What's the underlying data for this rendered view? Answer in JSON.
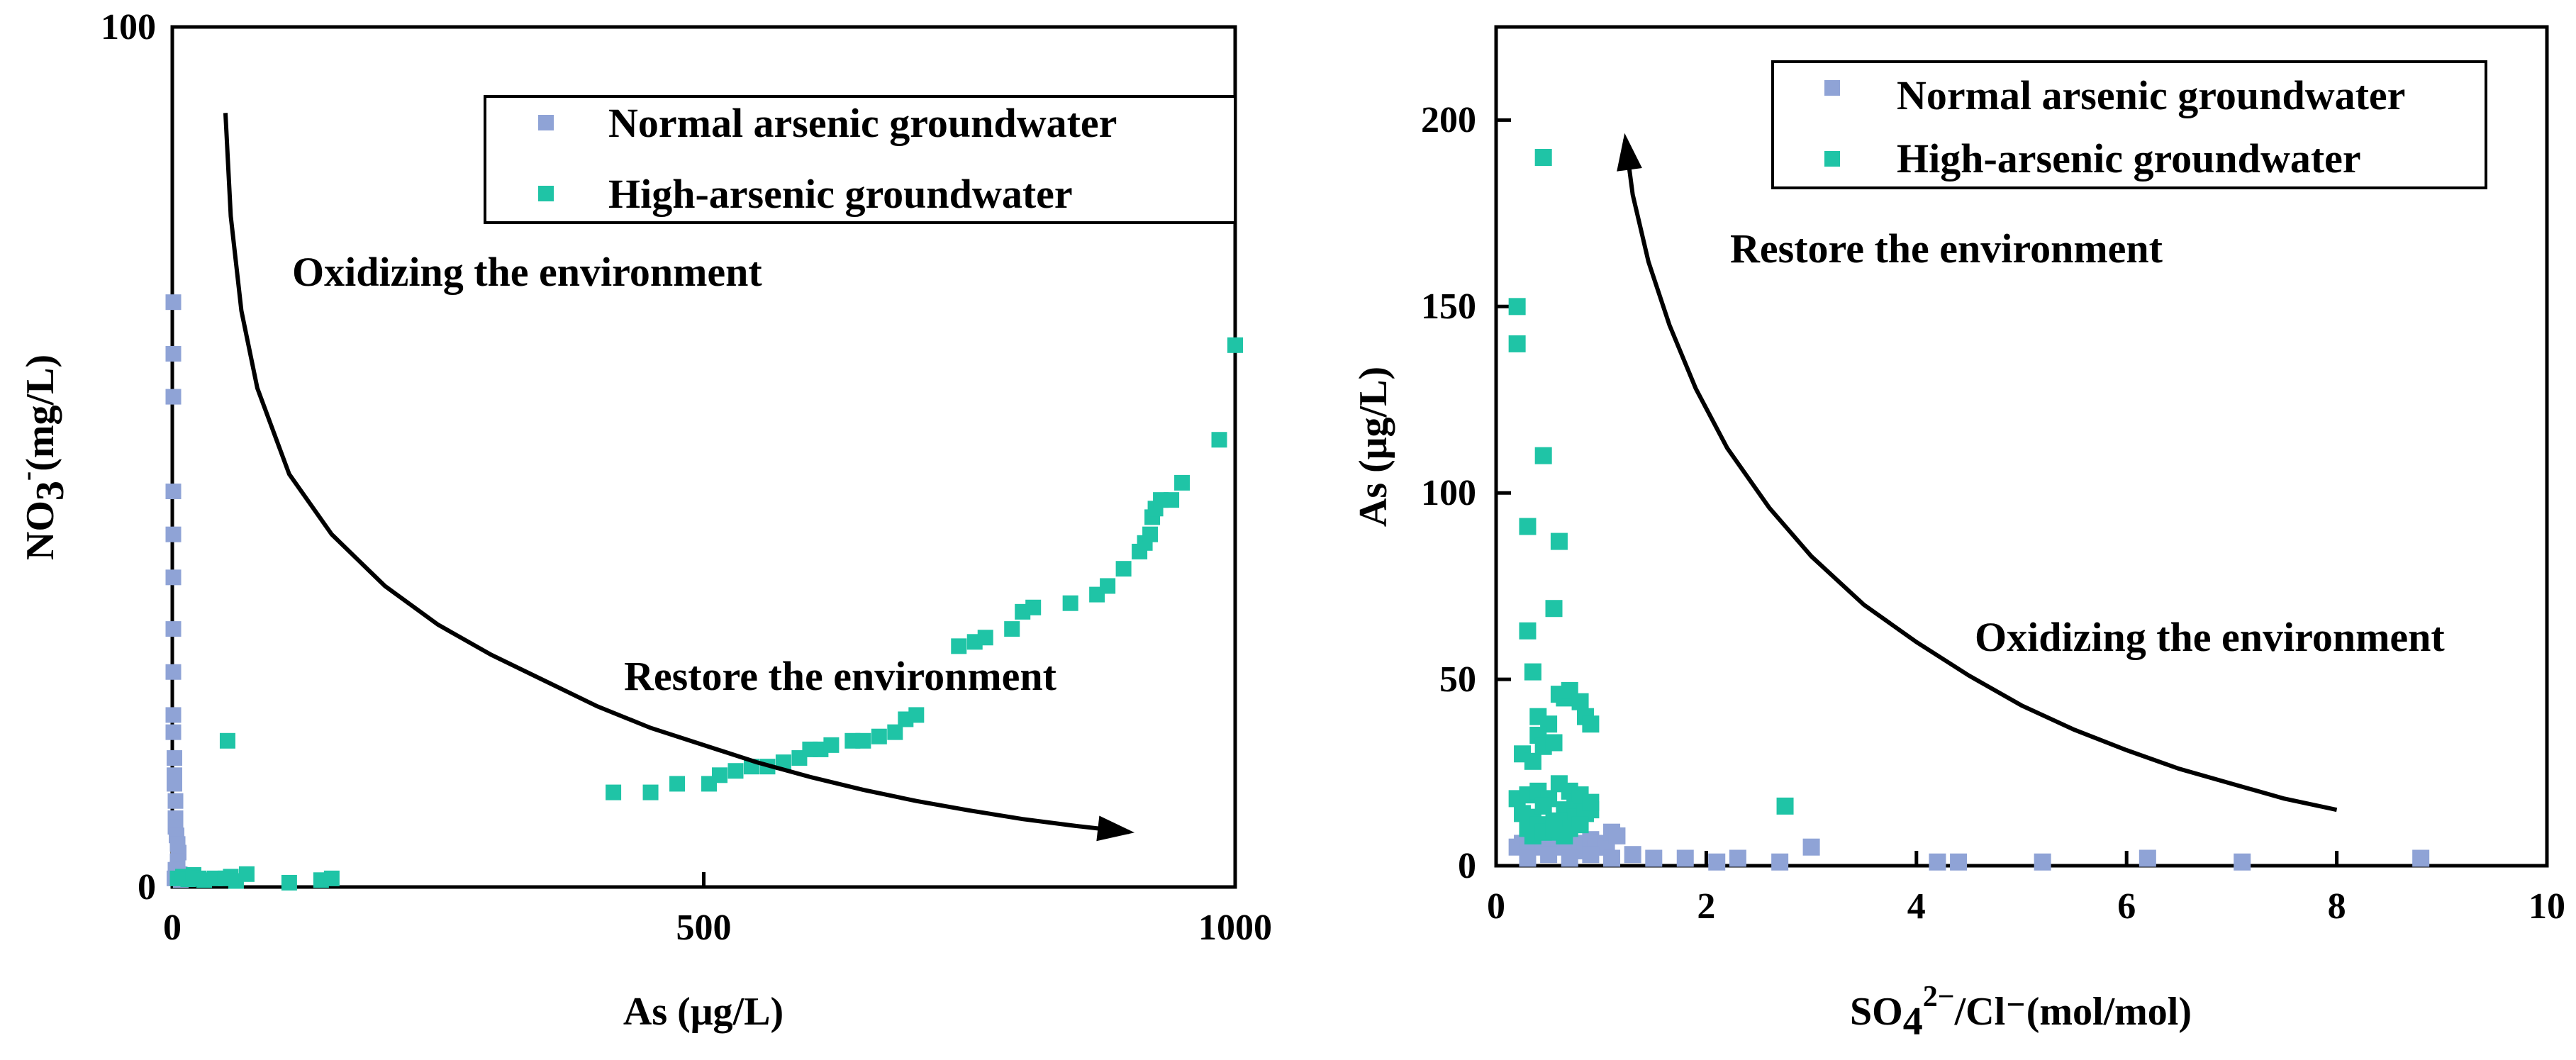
{
  "colors": {
    "normal": "#8fa3d6",
    "high": "#1fc4a6",
    "ink": "#000000",
    "background": "#ffffff"
  },
  "chart_data": [
    {
      "type": "scatter",
      "xlabel": "As (μg/L)",
      "ylabel_main": "NO",
      "ylabel_sub": "3",
      "ylabel_sup": "-",
      "ylabel_tail": "(mg/L)",
      "xlim": [
        0,
        1000
      ],
      "ylim": [
        0,
        100
      ],
      "xticks": [
        0,
        500,
        1000
      ],
      "xtick_labels": [
        "0",
        "500",
        "1000"
      ],
      "yticks": [
        0,
        100
      ],
      "ytick_labels": [
        "0",
        "100"
      ],
      "legend": {
        "position": "top-right",
        "entries": [
          "Normal arsenic groundwater",
          "High-arsenic groundwater"
        ]
      },
      "annotations": [
        {
          "text": "Oxidizing the environment",
          "x": 225,
          "y": 71
        },
        {
          "text": "Restore the environment",
          "x": 425,
          "y": 24
        }
      ],
      "arrow": {
        "x": [
          50,
          55,
          65,
          80,
          110,
          150,
          200,
          250,
          300,
          350,
          400,
          450,
          500,
          550,
          600,
          650,
          700,
          750,
          800,
          850,
          900
        ],
        "y": [
          90,
          78,
          67,
          58,
          48,
          41,
          35,
          30.5,
          27,
          24,
          21,
          18.5,
          16.5,
          14.5,
          12.8,
          11.3,
          10,
          8.9,
          7.9,
          7.1,
          6.4
        ]
      },
      "series": [
        {
          "name": "Normal arsenic groundwater",
          "x": [
            1,
            1,
            1,
            1,
            1,
            1,
            1,
            1,
            1,
            1,
            2,
            2,
            2,
            3,
            3,
            3,
            4,
            5,
            6,
            5,
            4,
            3,
            2,
            7,
            8
          ],
          "y": [
            68,
            62,
            57,
            46,
            41,
            36,
            30,
            25,
            20,
            18,
            15,
            13,
            12,
            10,
            8,
            7,
            6,
            5,
            4,
            3,
            2,
            2,
            1,
            1.5,
            0.8
          ]
        },
        {
          "name": "High-arsenic groundwater",
          "x": [
            5,
            10,
            15,
            20,
            25,
            30,
            40,
            50,
            55,
            60,
            70,
            110,
            140,
            150,
            52,
            415,
            450,
            475,
            505,
            515,
            530,
            545,
            560,
            575,
            590,
            600,
            610,
            620,
            640,
            650,
            665,
            680,
            690,
            700,
            740,
            755,
            765,
            790,
            800,
            810,
            845,
            870,
            880,
            895,
            910,
            915,
            920,
            922,
            925,
            930,
            940,
            950,
            985,
            1000
          ],
          "y": [
            1,
            1.2,
            0.9,
            1.4,
            1,
            0.8,
            1,
            1,
            1.2,
            0.7,
            1.5,
            0.5,
            0.8,
            1,
            17,
            11,
            11,
            12,
            12,
            13,
            13.5,
            14,
            14,
            14.5,
            15,
            16,
            16,
            16.5,
            17,
            17,
            17.5,
            18,
            19.5,
            20,
            28,
            28.5,
            29,
            30,
            32,
            32.5,
            33,
            34,
            35,
            37,
            39,
            40,
            41,
            43,
            44,
            45,
            45,
            47,
            52,
            63
          ]
        }
      ]
    },
    {
      "type": "scatter",
      "xlabel_main": "SO",
      "xlabel_sub": "4",
      "xlabel_sup": "2−",
      "xlabel_tail": "/Cl⁻(mol/mol)",
      "ylabel": "As (μg/L)",
      "xlim": [
        0,
        10
      ],
      "ylim": [
        0,
        225
      ],
      "xticks": [
        0,
        2,
        4,
        6,
        8,
        10
      ],
      "xtick_labels": [
        "0",
        "2",
        "4",
        "6",
        "8",
        "10"
      ],
      "yticks": [
        0,
        50,
        100,
        150,
        200
      ],
      "ytick_labels": [
        "0",
        "50",
        "100",
        "150",
        "200"
      ],
      "legend": {
        "position": "top-right",
        "entries": [
          "Normal arsenic groundwater",
          "High-arsenic groundwater"
        ]
      },
      "annotations": [
        {
          "text": "Restore the environment",
          "x": 4.3,
          "y": 160
        },
        {
          "text": "Oxidizing the environment",
          "x": 8.6,
          "y": 58
        }
      ],
      "arrow": {
        "x": [
          8,
          7.5,
          7,
          6.5,
          6,
          5.5,
          5,
          4.5,
          4,
          3.5,
          3,
          2.6,
          2.2,
          1.9,
          1.65,
          1.45,
          1.3,
          1.23
        ],
        "y": [
          15,
          18,
          22,
          26,
          31,
          36.5,
          43,
          51,
          60,
          70,
          83,
          96,
          112,
          128,
          145,
          162,
          180,
          195
        ]
      },
      "series": [
        {
          "name": "Normal arsenic groundwater",
          "x": [
            0.2,
            0.25,
            0.3,
            0.35,
            0.4,
            0.45,
            0.5,
            0.55,
            0.6,
            0.65,
            0.7,
            0.75,
            0.8,
            0.85,
            0.9,
            0.95,
            1.0,
            1.05,
            1.1,
            1.15,
            0.3,
            0.5,
            0.7,
            0.9,
            1.1,
            1.3,
            1.5,
            1.8,
            2.1,
            2.3,
            2.7,
            3.0,
            4.2,
            4.4,
            5.2,
            6.2,
            7.1,
            8.8
          ],
          "y": [
            5,
            6,
            7,
            5,
            8,
            6,
            7,
            5,
            6,
            8,
            7,
            5,
            6,
            4,
            7,
            5,
            6,
            5,
            9,
            8,
            2,
            3,
            2,
            3,
            2,
            3,
            2,
            2,
            1,
            2,
            1,
            5,
            1,
            1,
            1,
            2,
            1,
            2
          ]
        },
        {
          "name": "High-arsenic groundwater",
          "x": [
            0.45,
            0.2,
            0.2,
            0.45,
            0.3,
            0.6,
            0.55,
            0.3,
            0.35,
            0.4,
            0.5,
            0.6,
            0.25,
            0.35,
            0.4,
            0.45,
            0.55,
            0.65,
            0.7,
            0.8,
            0.85,
            0.9,
            0.2,
            0.3,
            0.4,
            0.5,
            0.6,
            0.7,
            0.75,
            0.8,
            0.9,
            0.25,
            0.35,
            0.45,
            0.55,
            0.65,
            0.75,
            0.85,
            0.9,
            0.3,
            0.4,
            0.5,
            0.6,
            0.7,
            0.8,
            0.35,
            0.45,
            0.55,
            0.65,
            2.75
          ],
          "y": [
            190,
            150,
            140,
            110,
            91,
            87,
            69,
            63,
            52,
            40,
            38,
            46,
            30,
            28,
            35,
            32,
            33,
            45,
            47,
            44,
            40,
            38,
            18,
            19,
            20,
            18,
            22,
            20,
            17,
            19,
            15,
            14,
            13,
            16,
            12,
            15,
            13,
            14,
            17,
            10,
            11,
            9,
            12,
            10,
            11,
            8,
            9,
            10,
            8,
            16
          ]
        }
      ]
    }
  ]
}
